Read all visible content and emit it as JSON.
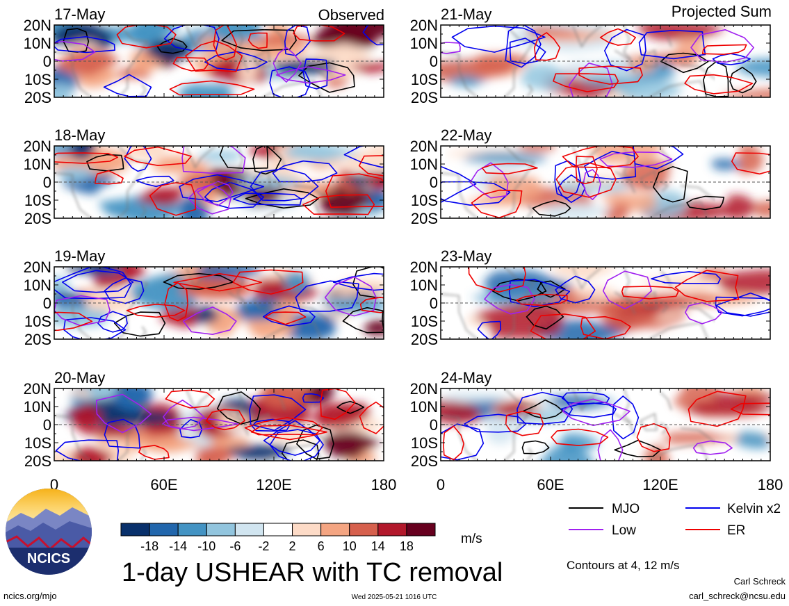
{
  "observed_label": "Observed",
  "projected_label": "Projected Sum",
  "panels_left": [
    {
      "date": "17-May"
    },
    {
      "date": "18-May"
    },
    {
      "date": "19-May"
    },
    {
      "date": "20-May"
    }
  ],
  "panels_right": [
    {
      "date": "21-May"
    },
    {
      "date": "22-May"
    },
    {
      "date": "23-May"
    },
    {
      "date": "24-May"
    }
  ],
  "lat_labels": [
    "20N",
    "10N",
    "0",
    "10S",
    "20S"
  ],
  "lon_labels": [
    "0",
    "60E",
    "120E",
    "180"
  ],
  "colorbar": {
    "colors": [
      "#08306b",
      "#2166ac",
      "#4393c3",
      "#92c5de",
      "#d1e5f0",
      "#ffffff",
      "#fddbc7",
      "#f4a582",
      "#d6604d",
      "#b2182b",
      "#67001f"
    ],
    "tick_labels": [
      "-18",
      "-14",
      "-10",
      "-6",
      "-2",
      "2",
      "6",
      "10",
      "14",
      "18"
    ],
    "units": "m/s"
  },
  "legend": {
    "items": [
      {
        "label": "MJO",
        "color": "#000000"
      },
      {
        "label": "Kelvin x2",
        "color": "#0000ee"
      },
      {
        "label": "Low",
        "color": "#a020f0"
      },
      {
        "label": "ER",
        "color": "#ee0000"
      }
    ],
    "contours_note": "Contours at 4, 12 m/s"
  },
  "title": "1-day USHEAR with TC removal",
  "logo_text": "NCICS",
  "footer": {
    "url": "ncics.org/mjo",
    "timestamp": "Wed 2025-05-21 1016 UTC",
    "author": "Carl Schreck",
    "email": "carl_schreck@ncsu.edu"
  }
}
